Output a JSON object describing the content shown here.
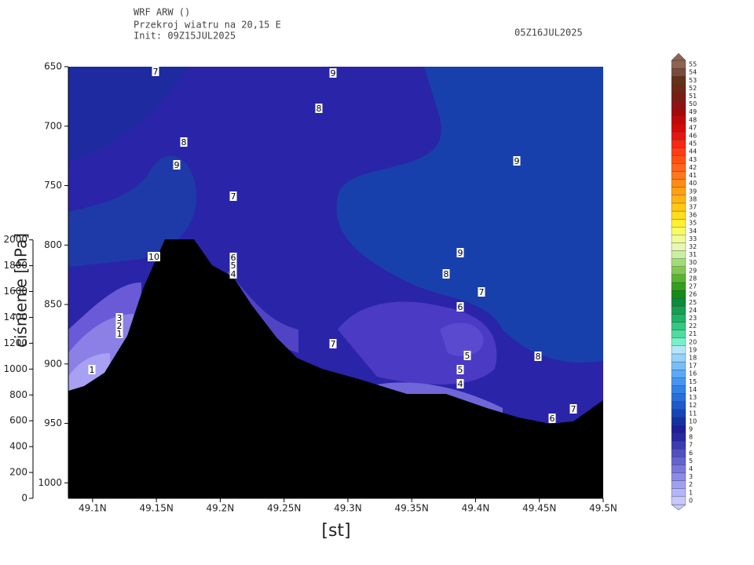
{
  "header": {
    "lines": [
      "WRF ARW ()",
      "Przekroj wiatru na 20,15 E",
      "Init: 09Z15JUL2025"
    ],
    "valid": "05Z16JUL2025"
  },
  "chart_data": {
    "type": "contour",
    "xlabel": "[st]",
    "ylabel": "ciśnienie [hPa]",
    "xlim": [
      49.081,
      49.5
    ],
    "xticks": [
      {
        "value": 49.1,
        "label": "49.1N"
      },
      {
        "value": 49.15,
        "label": "49.15N"
      },
      {
        "value": 49.2,
        "label": "49.2N"
      },
      {
        "value": 49.25,
        "label": "49.25N"
      },
      {
        "value": 49.3,
        "label": "49.3N"
      },
      {
        "value": 49.35,
        "label": "49.35N"
      },
      {
        "value": 49.4,
        "label": "49.4N"
      },
      {
        "value": 49.45,
        "label": "49.45N"
      },
      {
        "value": 49.5,
        "label": "49.5N"
      }
    ],
    "ylim": [
      1013,
      650
    ],
    "yticks": [
      650,
      700,
      750,
      800,
      850,
      900,
      950,
      1000
    ],
    "y2lim": [
      0,
      3340
    ],
    "y2ticks": [
      0,
      200,
      400,
      600,
      800,
      1000,
      1200,
      1400,
      1600,
      1800,
      2000
    ],
    "contour_labels": [
      7,
      9,
      8,
      8,
      9,
      7,
      9,
      9,
      8,
      7,
      6,
      5,
      5,
      4,
      8,
      7,
      6,
      7,
      6,
      5,
      4,
      3,
      2,
      1,
      1,
      10
    ],
    "colorbar": {
      "levels": [
        0,
        1,
        2,
        3,
        4,
        5,
        6,
        7,
        8,
        9,
        10,
        11,
        12,
        13,
        14,
        15,
        16,
        17,
        18,
        19,
        20,
        21,
        22,
        23,
        24,
        25,
        26,
        27,
        28,
        29,
        30,
        31,
        32,
        33,
        34,
        35,
        36,
        37,
        38,
        39,
        40,
        41,
        42,
        43,
        44,
        45,
        46,
        47,
        48,
        49,
        50,
        51,
        52,
        53,
        54,
        55
      ],
      "colors": [
        "#c8c8ff",
        "#b4b4f8",
        "#a0a0f0",
        "#8c8ce8",
        "#7878dc",
        "#6464d0",
        "#5050c0",
        "#3c3cb0",
        "#2828a0",
        "#1e1e96",
        "#1432a0",
        "#1446b4",
        "#1e5ac8",
        "#2870d8",
        "#3282e6",
        "#4696f0",
        "#5aaaf5",
        "#78bef8",
        "#96d2fa",
        "#b4e6fa",
        "#78f0c8",
        "#50dca0",
        "#32c882",
        "#1eb464",
        "#14a050",
        "#0a8c3c",
        "#148c14",
        "#32a01e",
        "#5ab432",
        "#82c850",
        "#a0dc78",
        "#c8f0a0",
        "#e6f8b4",
        "#f0fa96",
        "#f8fa64",
        "#fff032",
        "#ffdc1e",
        "#ffc814",
        "#ffb414",
        "#ffa014",
        "#ff8c14",
        "#ff781e",
        "#ff641e",
        "#ff5014",
        "#ff3c14",
        "#f52814",
        "#e61414",
        "#d20a0a",
        "#be0a0a",
        "#a00a0a",
        "#8c1414",
        "#781e14",
        "#6e2814",
        "#643214",
        "#7a4a3c",
        "#8c6450"
      ]
    }
  }
}
